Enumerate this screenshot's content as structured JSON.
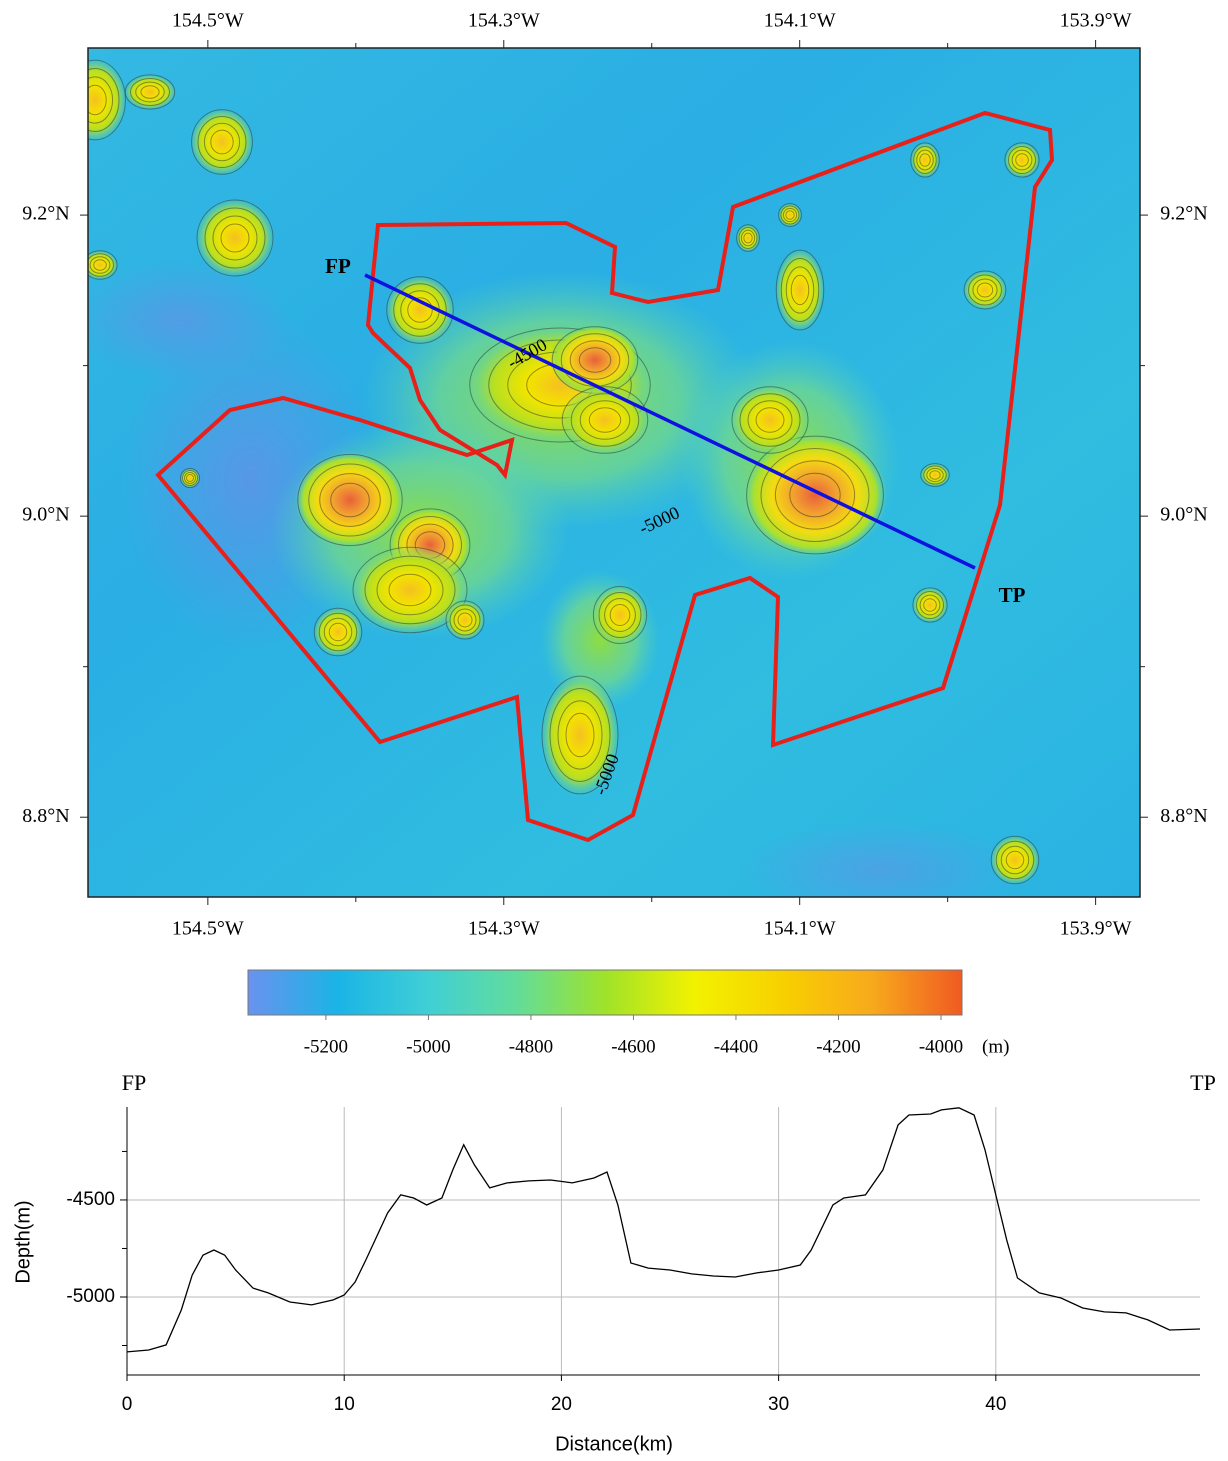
{
  "chart_data": [
    {
      "type": "map",
      "xlim": [
        -154.581,
        -153.87
      ],
      "ylim": [
        8.747,
        9.311
      ],
      "xticks": [
        {
          "value": -154.5,
          "label": "154.5°W"
        },
        {
          "value": -154.3,
          "label": "154.3°W"
        },
        {
          "value": -154.1,
          "label": "154.1°W"
        },
        {
          "value": -153.9,
          "label": "153.9°W"
        }
      ],
      "yticks": [
        {
          "value": 9.2,
          "label": "9.2°N"
        },
        {
          "value": 9.0,
          "label": "9.0°N"
        },
        {
          "value": 8.8,
          "label": "8.8°N"
        }
      ],
      "xminor_ticks": [
        -154.4,
        -154.2,
        -154.0
      ],
      "yminor_ticks": [
        9.1,
        8.9
      ],
      "profile_start_label": "FP",
      "profile_end_label": "TP",
      "contour_labels": [
        "-4500",
        "-5000",
        "-5000"
      ]
    },
    {
      "type": "colorbar",
      "range": [
        -5352,
        -3959
      ],
      "ticks": [
        -5200,
        -5000,
        -4800,
        -4600,
        -4400,
        -4200,
        -4000
      ],
      "unit": "(m)",
      "colors": [
        "#6a92ee",
        "#1ab4e6",
        "#3fcfd6",
        "#62dc9c",
        "#9fe22a",
        "#f2f200",
        "#f8d000",
        "#f7a91c",
        "#f05a22"
      ]
    },
    {
      "type": "line",
      "start_label": "FP",
      "end_label": "TP",
      "xlabel": "Distance(km)",
      "ylabel": "Depth(m)",
      "xlim": [
        0,
        49.4
      ],
      "ylim": [
        -5402,
        -4021
      ],
      "xticks": [
        0,
        10,
        20,
        30,
        40
      ],
      "yticks": [
        -4500,
        -5000
      ],
      "yminor_ticks": [
        -4250,
        -4750,
        -5250
      ],
      "grid": true,
      "color": "#000000",
      "x": [
        0,
        1,
        1.8,
        2.5,
        3,
        3.5,
        4,
        4.5,
        5,
        5.8,
        6.5,
        7.5,
        8.5,
        9.5,
        10,
        10.5,
        11,
        12,
        12.6,
        13.2,
        13.8,
        14.5,
        15,
        15.5,
        16,
        16.7,
        17.5,
        18.5,
        19.5,
        20.5,
        21.5,
        22.1,
        22.6,
        23.2,
        24,
        25,
        26,
        27,
        28,
        29,
        30,
        31,
        31.5,
        32.5,
        33,
        34,
        34.8,
        35.5,
        36,
        37,
        37.5,
        38.3,
        39,
        39.5,
        40,
        40.5,
        41,
        42,
        43,
        44,
        45,
        46,
        47,
        48,
        49.4
      ],
      "values": [
        -5283,
        -5273,
        -5247,
        -5067,
        -4887,
        -4784,
        -4758,
        -4784,
        -4861,
        -4954,
        -4979,
        -5026,
        -5041,
        -5015,
        -4990,
        -4923,
        -4809,
        -4567,
        -4474,
        -4490,
        -4526,
        -4490,
        -4345,
        -4216,
        -4320,
        -4438,
        -4412,
        -4402,
        -4397,
        -4412,
        -4387,
        -4356,
        -4526,
        -4825,
        -4851,
        -4861,
        -4881,
        -4892,
        -4897,
        -4876,
        -4861,
        -4835,
        -4758,
        -4526,
        -4490,
        -4474,
        -4345,
        -4113,
        -4062,
        -4057,
        -4036,
        -4025,
        -4062,
        -4242,
        -4474,
        -4706,
        -4902,
        -4979,
        -5005,
        -5057,
        -5077,
        -5082,
        -5118,
        -5170,
        -5165
      ]
    }
  ]
}
